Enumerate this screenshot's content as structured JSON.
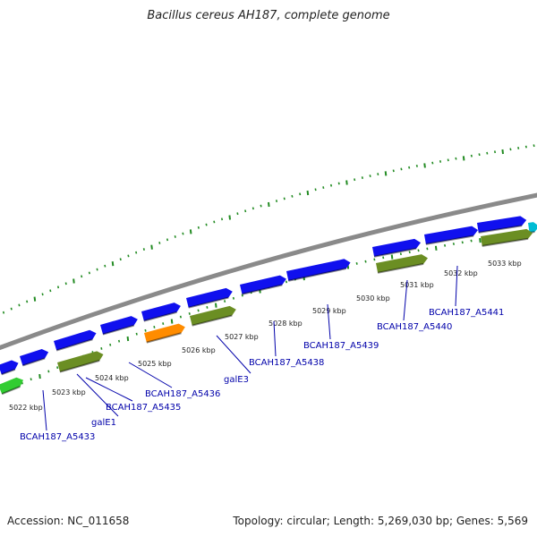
{
  "title": "Bacillus cereus AH187, complete genome",
  "accession": "Accession: NC_011658",
  "topology": "Topology: circular; Length: 5,269,030 bp; Genes: 5,569",
  "colors": {
    "backbone": "#8a8a8a",
    "cds_blue": "#1010ee",
    "gene_olive": "#6b8e23",
    "gene_orange": "#ff8c00",
    "gene_green": "#32cd32",
    "gene_cyan": "#00bcd4",
    "tick_green": "#228b22",
    "label_blue": "#0000aa"
  },
  "kbp_labels": [
    "5022 kbp",
    "5023 kbp",
    "5024 kbp",
    "5025 kbp",
    "5026 kbp",
    "5027 kbp",
    "5028 kbp",
    "5029 kbp",
    "5030 kbp",
    "5031 kbp",
    "5032 kbp",
    "5033 kbp"
  ],
  "gene_labels": [
    "BCAH187_A5433",
    "galE1",
    "BCAH187_A5435",
    "BCAH187_A5436",
    "galE3",
    "BCAH187_A5438",
    "BCAH187_A5439",
    "BCAH187_A5440",
    "BCAH187_A5441"
  ]
}
